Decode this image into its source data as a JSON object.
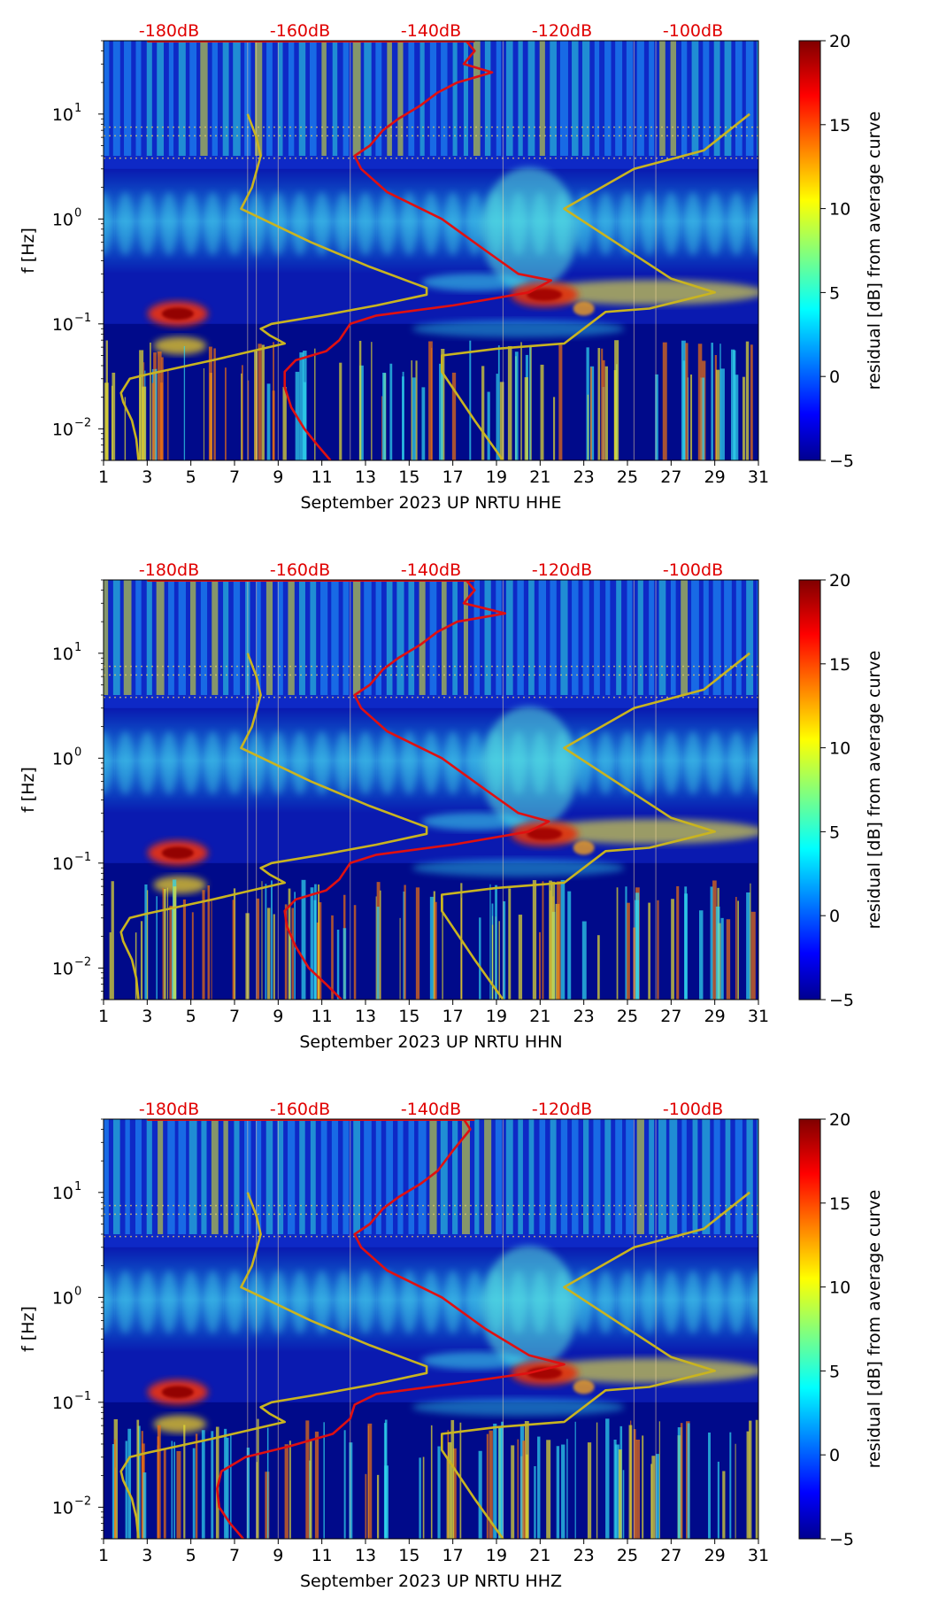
{
  "chart_data": [
    {
      "type": "heatmap",
      "xlabel": "September 2023 UP NRTU  HHE",
      "ylabel": "f [Hz]",
      "x_ticks": [
        1,
        3,
        5,
        7,
        9,
        11,
        13,
        15,
        17,
        19,
        21,
        23,
        25,
        27,
        29,
        31
      ],
      "xlim": [
        1,
        31
      ],
      "ylim": [
        0.005,
        50
      ],
      "y_scale": "log",
      "y_ticks": [
        {
          "value": 0.01,
          "label": "10",
          "exp": "−2"
        },
        {
          "value": 0.1,
          "label": "10",
          "exp": "−1"
        },
        {
          "value": 1,
          "label": "10",
          "exp": "0"
        },
        {
          "value": 10,
          "label": "10",
          "exp": "1"
        }
      ],
      "top_axis_ticks": [
        {
          "x": 4,
          "label": "-180dB"
        },
        {
          "x": 10,
          "label": "-160dB"
        },
        {
          "x": 16,
          "label": "-140dB"
        },
        {
          "x": 22,
          "label": "-120dB"
        },
        {
          "x": 28,
          "label": "-100dB"
        }
      ],
      "colorbar": {
        "label": "residual [dB] from average curve",
        "min": -5,
        "max": 20,
        "ticks": [
          -5,
          0,
          5,
          10,
          15,
          20
        ]
      },
      "series": [
        {
          "name": "average PSD curve",
          "color": "#e01010",
          "points": [
            [
              11.4,
              0.005
            ],
            [
              10.8,
              0.007
            ],
            [
              10.2,
              0.01
            ],
            [
              9.6,
              0.016
            ],
            [
              9.3,
              0.025
            ],
            [
              9.3,
              0.035
            ],
            [
              9.8,
              0.045
            ],
            [
              11.2,
              0.055
            ],
            [
              11.8,
              0.07
            ],
            [
              12.3,
              0.1
            ],
            [
              13.5,
              0.12
            ],
            [
              17,
              0.15
            ],
            [
              20.5,
              0.2
            ],
            [
              21.5,
              0.26
            ],
            [
              20,
              0.3
            ],
            [
              18.5,
              0.5
            ],
            [
              16.5,
              1
            ],
            [
              14,
              1.8
            ],
            [
              12.8,
              3
            ],
            [
              12.5,
              4
            ],
            [
              13.2,
              5
            ],
            [
              13.8,
              7
            ],
            [
              14.5,
              9
            ],
            [
              15.5,
              12
            ],
            [
              16.3,
              16
            ],
            [
              17.2,
              20
            ],
            [
              18.8,
              25
            ],
            [
              17.5,
              30
            ],
            [
              18,
              40
            ],
            [
              17.6,
              50
            ]
          ]
        },
        {
          "name": "noise model curve",
          "color": "#c9b420",
          "points": [
            [
              2.6,
              0.005
            ],
            [
              2.5,
              0.008
            ],
            [
              2.3,
              0.012
            ],
            [
              1.9,
              0.018
            ],
            [
              1.8,
              0.022
            ],
            [
              2.2,
              0.03
            ],
            [
              3,
              0.033
            ],
            [
              6,
              0.045
            ],
            [
              9.3,
              0.065
            ],
            [
              8.6,
              0.078
            ],
            [
              8.2,
              0.09
            ],
            [
              8.7,
              0.1
            ],
            [
              11,
              0.12
            ],
            [
              13.5,
              0.15
            ],
            [
              15.8,
              0.19
            ],
            [
              15.8,
              0.22
            ],
            [
              13.2,
              0.35
            ],
            [
              10.5,
              0.6
            ],
            [
              7.3,
              1.25
            ],
            [
              7.8,
              2
            ],
            [
              8.2,
              4
            ],
            [
              8,
              6
            ],
            [
              7.6,
              10
            ]
          ]
        },
        {
          "name": "noise model curve (upper)",
          "color": "#c9b420",
          "points": [
            [
              19.3,
              0.005
            ],
            [
              18,
              0.012
            ],
            [
              16.5,
              0.035
            ],
            [
              16.5,
              0.05
            ],
            [
              19,
              0.058
            ],
            [
              22.1,
              0.065
            ],
            [
              24,
              0.13
            ],
            [
              26,
              0.14
            ],
            [
              29,
              0.2
            ],
            [
              27,
              0.27
            ],
            [
              22.1,
              1.25
            ],
            [
              25.3,
              3
            ],
            [
              28.5,
              4.5
            ],
            [
              30.6,
              10
            ]
          ]
        }
      ]
    },
    {
      "type": "heatmap",
      "xlabel": "September 2023 UP NRTU  HHN",
      "ylabel": "f [Hz]",
      "x_ticks": [
        1,
        3,
        5,
        7,
        9,
        11,
        13,
        15,
        17,
        19,
        21,
        23,
        25,
        27,
        29,
        31
      ],
      "xlim": [
        1,
        31
      ],
      "ylim": [
        0.005,
        50
      ],
      "y_scale": "log",
      "y_ticks": [
        {
          "value": 0.01,
          "label": "10",
          "exp": "−2"
        },
        {
          "value": 0.1,
          "label": "10",
          "exp": "−1"
        },
        {
          "value": 1,
          "label": "10",
          "exp": "0"
        },
        {
          "value": 10,
          "label": "10",
          "exp": "1"
        }
      ],
      "top_axis_ticks": [
        {
          "x": 4,
          "label": "-180dB"
        },
        {
          "x": 10,
          "label": "-160dB"
        },
        {
          "x": 16,
          "label": "-140dB"
        },
        {
          "x": 22,
          "label": "-120dB"
        },
        {
          "x": 28,
          "label": "-100dB"
        }
      ],
      "colorbar": {
        "label": "residual [dB] from average curve",
        "min": -5,
        "max": 20,
        "ticks": [
          -5,
          0,
          5,
          10,
          15,
          20
        ]
      },
      "series": [
        {
          "name": "average PSD curve",
          "color": "#e01010",
          "points": [
            [
              11.9,
              0.005
            ],
            [
              11.2,
              0.007
            ],
            [
              10.4,
              0.01
            ],
            [
              9.8,
              0.016
            ],
            [
              9.4,
              0.025
            ],
            [
              9.3,
              0.035
            ],
            [
              9.8,
              0.045
            ],
            [
              11.2,
              0.055
            ],
            [
              11.8,
              0.07
            ],
            [
              12.3,
              0.1
            ],
            [
              13.5,
              0.12
            ],
            [
              17,
              0.15
            ],
            [
              20.5,
              0.2
            ],
            [
              21.4,
              0.25
            ],
            [
              20,
              0.3
            ],
            [
              18.5,
              0.5
            ],
            [
              16.5,
              1
            ],
            [
              14,
              1.8
            ],
            [
              12.8,
              3
            ],
            [
              12.5,
              4
            ],
            [
              13.2,
              5
            ],
            [
              13.8,
              7
            ],
            [
              14.5,
              9
            ],
            [
              15.5,
              12
            ],
            [
              16.3,
              16
            ],
            [
              17.2,
              20
            ],
            [
              19.4,
              24
            ],
            [
              17.5,
              30
            ],
            [
              18,
              40
            ],
            [
              17.6,
              50
            ]
          ]
        },
        {
          "name": "noise model curve",
          "color": "#c9b420",
          "points": [
            [
              2.6,
              0.005
            ],
            [
              2.5,
              0.008
            ],
            [
              2.3,
              0.012
            ],
            [
              1.9,
              0.018
            ],
            [
              1.8,
              0.022
            ],
            [
              2.2,
              0.03
            ],
            [
              3,
              0.033
            ],
            [
              6,
              0.045
            ],
            [
              9.3,
              0.065
            ],
            [
              8.6,
              0.078
            ],
            [
              8.2,
              0.09
            ],
            [
              8.7,
              0.1
            ],
            [
              11,
              0.12
            ],
            [
              13.5,
              0.15
            ],
            [
              15.8,
              0.19
            ],
            [
              15.8,
              0.22
            ],
            [
              13.2,
              0.35
            ],
            [
              10.5,
              0.6
            ],
            [
              7.3,
              1.25
            ],
            [
              7.8,
              2
            ],
            [
              8.2,
              4
            ],
            [
              8,
              6
            ],
            [
              7.6,
              10
            ]
          ]
        },
        {
          "name": "noise model curve (upper)",
          "color": "#c9b420",
          "points": [
            [
              19.3,
              0.005
            ],
            [
              18,
              0.012
            ],
            [
              16.5,
              0.035
            ],
            [
              16.5,
              0.05
            ],
            [
              19,
              0.058
            ],
            [
              22.1,
              0.065
            ],
            [
              24,
              0.13
            ],
            [
              26,
              0.14
            ],
            [
              29,
              0.2
            ],
            [
              27,
              0.27
            ],
            [
              22.1,
              1.25
            ],
            [
              25.3,
              3
            ],
            [
              28.5,
              4.5
            ],
            [
              30.6,
              10
            ]
          ]
        }
      ]
    },
    {
      "type": "heatmap",
      "xlabel": "September 2023 UP NRTU  HHZ",
      "ylabel": "f [Hz]",
      "x_ticks": [
        1,
        3,
        5,
        7,
        9,
        11,
        13,
        15,
        17,
        19,
        21,
        23,
        25,
        27,
        29,
        31
      ],
      "xlim": [
        1,
        31
      ],
      "ylim": [
        0.005,
        50
      ],
      "y_scale": "log",
      "y_ticks": [
        {
          "value": 0.01,
          "label": "10",
          "exp": "−2"
        },
        {
          "value": 0.1,
          "label": "10",
          "exp": "−1"
        },
        {
          "value": 1,
          "label": "10",
          "exp": "0"
        },
        {
          "value": 10,
          "label": "10",
          "exp": "1"
        }
      ],
      "top_axis_ticks": [
        {
          "x": 4,
          "label": "-180dB"
        },
        {
          "x": 10,
          "label": "-160dB"
        },
        {
          "x": 16,
          "label": "-140dB"
        },
        {
          "x": 22,
          "label": "-120dB"
        },
        {
          "x": 28,
          "label": "-100dB"
        }
      ],
      "colorbar": {
        "label": "residual [dB] from average curve",
        "min": -5,
        "max": 20,
        "ticks": [
          -5,
          0,
          5,
          10,
          15,
          20
        ]
      },
      "series": [
        {
          "name": "average PSD curve",
          "color": "#e01010",
          "points": [
            [
              7.4,
              0.005
            ],
            [
              6.8,
              0.007
            ],
            [
              6.3,
              0.01
            ],
            [
              6.2,
              0.015
            ],
            [
              6.4,
              0.022
            ],
            [
              7.5,
              0.03
            ],
            [
              9.5,
              0.038
            ],
            [
              11.5,
              0.05
            ],
            [
              12.3,
              0.07
            ],
            [
              12.5,
              0.095
            ],
            [
              13.5,
              0.12
            ],
            [
              17,
              0.15
            ],
            [
              20.5,
              0.19
            ],
            [
              22.1,
              0.23
            ],
            [
              20.5,
              0.28
            ],
            [
              18.5,
              0.5
            ],
            [
              16.5,
              1
            ],
            [
              14,
              1.8
            ],
            [
              12.8,
              3
            ],
            [
              12.5,
              4
            ],
            [
              13.2,
              5
            ],
            [
              13.8,
              7
            ],
            [
              14.5,
              9
            ],
            [
              15.5,
              12
            ],
            [
              16.3,
              16
            ],
            [
              17,
              25
            ],
            [
              17.8,
              40
            ],
            [
              17.5,
              50
            ]
          ]
        },
        {
          "name": "noise model curve",
          "color": "#c9b420",
          "points": [
            [
              2.6,
              0.005
            ],
            [
              2.5,
              0.008
            ],
            [
              2.3,
              0.012
            ],
            [
              1.9,
              0.018
            ],
            [
              1.8,
              0.022
            ],
            [
              2.2,
              0.03
            ],
            [
              3,
              0.033
            ],
            [
              6,
              0.045
            ],
            [
              9.3,
              0.065
            ],
            [
              8.6,
              0.078
            ],
            [
              8.2,
              0.09
            ],
            [
              8.7,
              0.1
            ],
            [
              11,
              0.12
            ],
            [
              13.5,
              0.15
            ],
            [
              15.8,
              0.19
            ],
            [
              15.8,
              0.22
            ],
            [
              13.2,
              0.35
            ],
            [
              10.5,
              0.6
            ],
            [
              7.3,
              1.25
            ],
            [
              7.8,
              2
            ],
            [
              8.2,
              4
            ],
            [
              8,
              6
            ],
            [
              7.6,
              10
            ]
          ]
        },
        {
          "name": "noise model curve (upper)",
          "color": "#c9b420",
          "points": [
            [
              19.3,
              0.005
            ],
            [
              18,
              0.012
            ],
            [
              16.5,
              0.035
            ],
            [
              16.5,
              0.05
            ],
            [
              19,
              0.058
            ],
            [
              22.1,
              0.065
            ],
            [
              24,
              0.13
            ],
            [
              26,
              0.14
            ],
            [
              29,
              0.2
            ],
            [
              27,
              0.27
            ],
            [
              22.1,
              1.25
            ],
            [
              25.3,
              3
            ],
            [
              28.5,
              4.5
            ],
            [
              30.6,
              10
            ]
          ]
        }
      ]
    }
  ]
}
